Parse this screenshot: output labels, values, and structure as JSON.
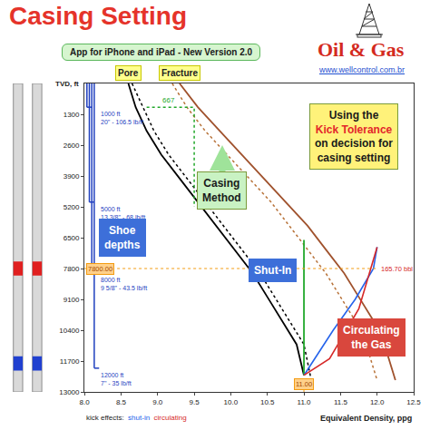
{
  "header": {
    "title": "Casing Setting",
    "subtitle": "App for iPhone and iPad - New Version 2.0",
    "brand": "Oil & Gas",
    "url": "www.wellcontrol.com.br"
  },
  "chart_data": {
    "type": "line",
    "y_label": "TVD, ft",
    "x_label": "Equivalent Density, ppg",
    "xlim": [
      8.0,
      12.5
    ],
    "xticks": [
      {
        "value": 8,
        "label": "8.0"
      },
      8.5,
      {
        "value": 9,
        "label": "9.0"
      },
      9.5,
      {
        "value": 10,
        "label": "10.0"
      },
      10.5,
      {
        "value": 11,
        "label": "11.0"
      },
      11.5,
      {
        "value": 12,
        "label": "12.0"
      },
      12.5
    ],
    "ylim": [
      13000,
      0
    ],
    "yticks": [
      1300,
      2600,
      3900,
      5200,
      6500,
      7800,
      9100,
      10400,
      11700,
      13000
    ],
    "grid": false,
    "series": [
      {
        "name": "Pore",
        "color": "#000000",
        "line_style": "solid",
        "x": [
          8.6,
          8.7,
          8.85,
          9.05,
          9.3,
          9.55,
          9.8,
          10.05,
          10.3,
          10.5,
          10.7,
          10.9,
          11.0
        ],
        "values": [
          0,
          1000,
          2000,
          3000,
          4000,
          5000,
          6000,
          7000,
          8000,
          9000,
          10000,
          11000,
          12300
        ]
      },
      {
        "color": "#000000",
        "line_style": "dotted",
        "x": [
          8.65,
          8.8,
          8.95,
          9.15,
          9.4,
          9.65,
          9.9,
          10.15,
          10.4,
          10.6,
          10.8,
          11.0,
          11.1
        ],
        "values": [
          0,
          1000,
          2000,
          3000,
          4000,
          5000,
          6000,
          7000,
          8000,
          9000,
          10000,
          11000,
          12500
        ]
      },
      {
        "name": "Fracture",
        "color": "#a0522d",
        "line_style": "solid",
        "x": [
          9.3,
          9.55,
          9.85,
          10.15,
          10.45,
          10.75,
          11.05,
          11.3,
          11.55,
          11.75,
          11.95,
          12.1,
          12.25
        ],
        "values": [
          0,
          1000,
          2000,
          3000,
          4000,
          5000,
          6000,
          7000,
          8000,
          9000,
          10000,
          11000,
          12500
        ]
      },
      {
        "color": "#b8733a",
        "line_style": "dotted",
        "x": [
          9.2,
          9.4,
          9.65,
          9.95,
          10.25,
          10.55,
          10.8,
          11.05,
          11.3,
          11.5,
          11.7,
          11.85,
          12.0
        ],
        "values": [
          0,
          1000,
          2000,
          3000,
          4000,
          5000,
          6000,
          7000,
          8000,
          9000,
          10000,
          11000,
          12500
        ]
      },
      {
        "color": "#22a82b",
        "line_style": "dotted",
        "x": [
          8.85,
          9.5,
          9.5
        ],
        "values": [
          1000,
          1000,
          5200
        ]
      },
      {
        "color": "#22a82b",
        "line_style": "solid",
        "x": [
          11.0,
          11.0
        ],
        "values": [
          12300,
          6600
        ]
      }
    ],
    "kick_effects": {
      "title": "kick effects:",
      "series": [
        {
          "name": "shut-in",
          "color": "#2563eb",
          "line_style": "solid",
          "x": [
            11.0,
            11.4,
            11.7,
            11.95,
            12.0
          ],
          "values": [
            12300,
            10400,
            9100,
            7800,
            6900
          ]
        },
        {
          "name": "circulating",
          "color": "#d62828",
          "line_style": "solid",
          "x": [
            11.0,
            11.35,
            11.75,
            12.0
          ],
          "values": [
            12300,
            11600,
            9500,
            6900
          ]
        }
      ]
    },
    "shoes": [
      {
        "depth": 1000,
        "label": "1000 ft",
        "casing": "20\" - 106.5 lb/ft"
      },
      {
        "depth": 5000,
        "label": "5000 ft",
        "casing": "13 3/8\" - 68 lb/ft"
      },
      {
        "depth": 8000,
        "label": "8000 ft",
        "casing": "9 5/8\" - 43.5 lb/ft"
      },
      {
        "depth": 12000,
        "label": "12000 ft",
        "casing": "7\" - 35 lb/ft"
      }
    ],
    "kick_tolerance": {
      "depth": {
        "value": 7800,
        "label": "7800.00"
      },
      "density": {
        "value": 11,
        "label": "11.00"
      },
      "volume": {
        "value": 165.7,
        "label": "165.70 bbl"
      }
    },
    "annotations": [
      {
        "text": "667",
        "x": 9.15,
        "y": 1000,
        "color": "#22a82b"
      }
    ],
    "callouts": [
      {
        "text": "Casing Method",
        "color": "#c9f2c3"
      },
      {
        "text": "Shoe depths",
        "color": "#3d6fd9"
      },
      {
        "text": "Using the",
        "highlight": "Kick Tolerance",
        "rest": "on decision for casing setting",
        "color": "#fff27a"
      },
      {
        "text": "Shut-In",
        "color": "#3d6fd9"
      },
      {
        "text": "Circulating the Gas",
        "color": "#d9473d"
      }
    ],
    "well": {
      "bands": [
        {
          "from": 7500,
          "to": 8100,
          "color": "#e02020"
        },
        {
          "from": 11500,
          "to": 12100,
          "color": "#2040d0"
        }
      ]
    }
  }
}
